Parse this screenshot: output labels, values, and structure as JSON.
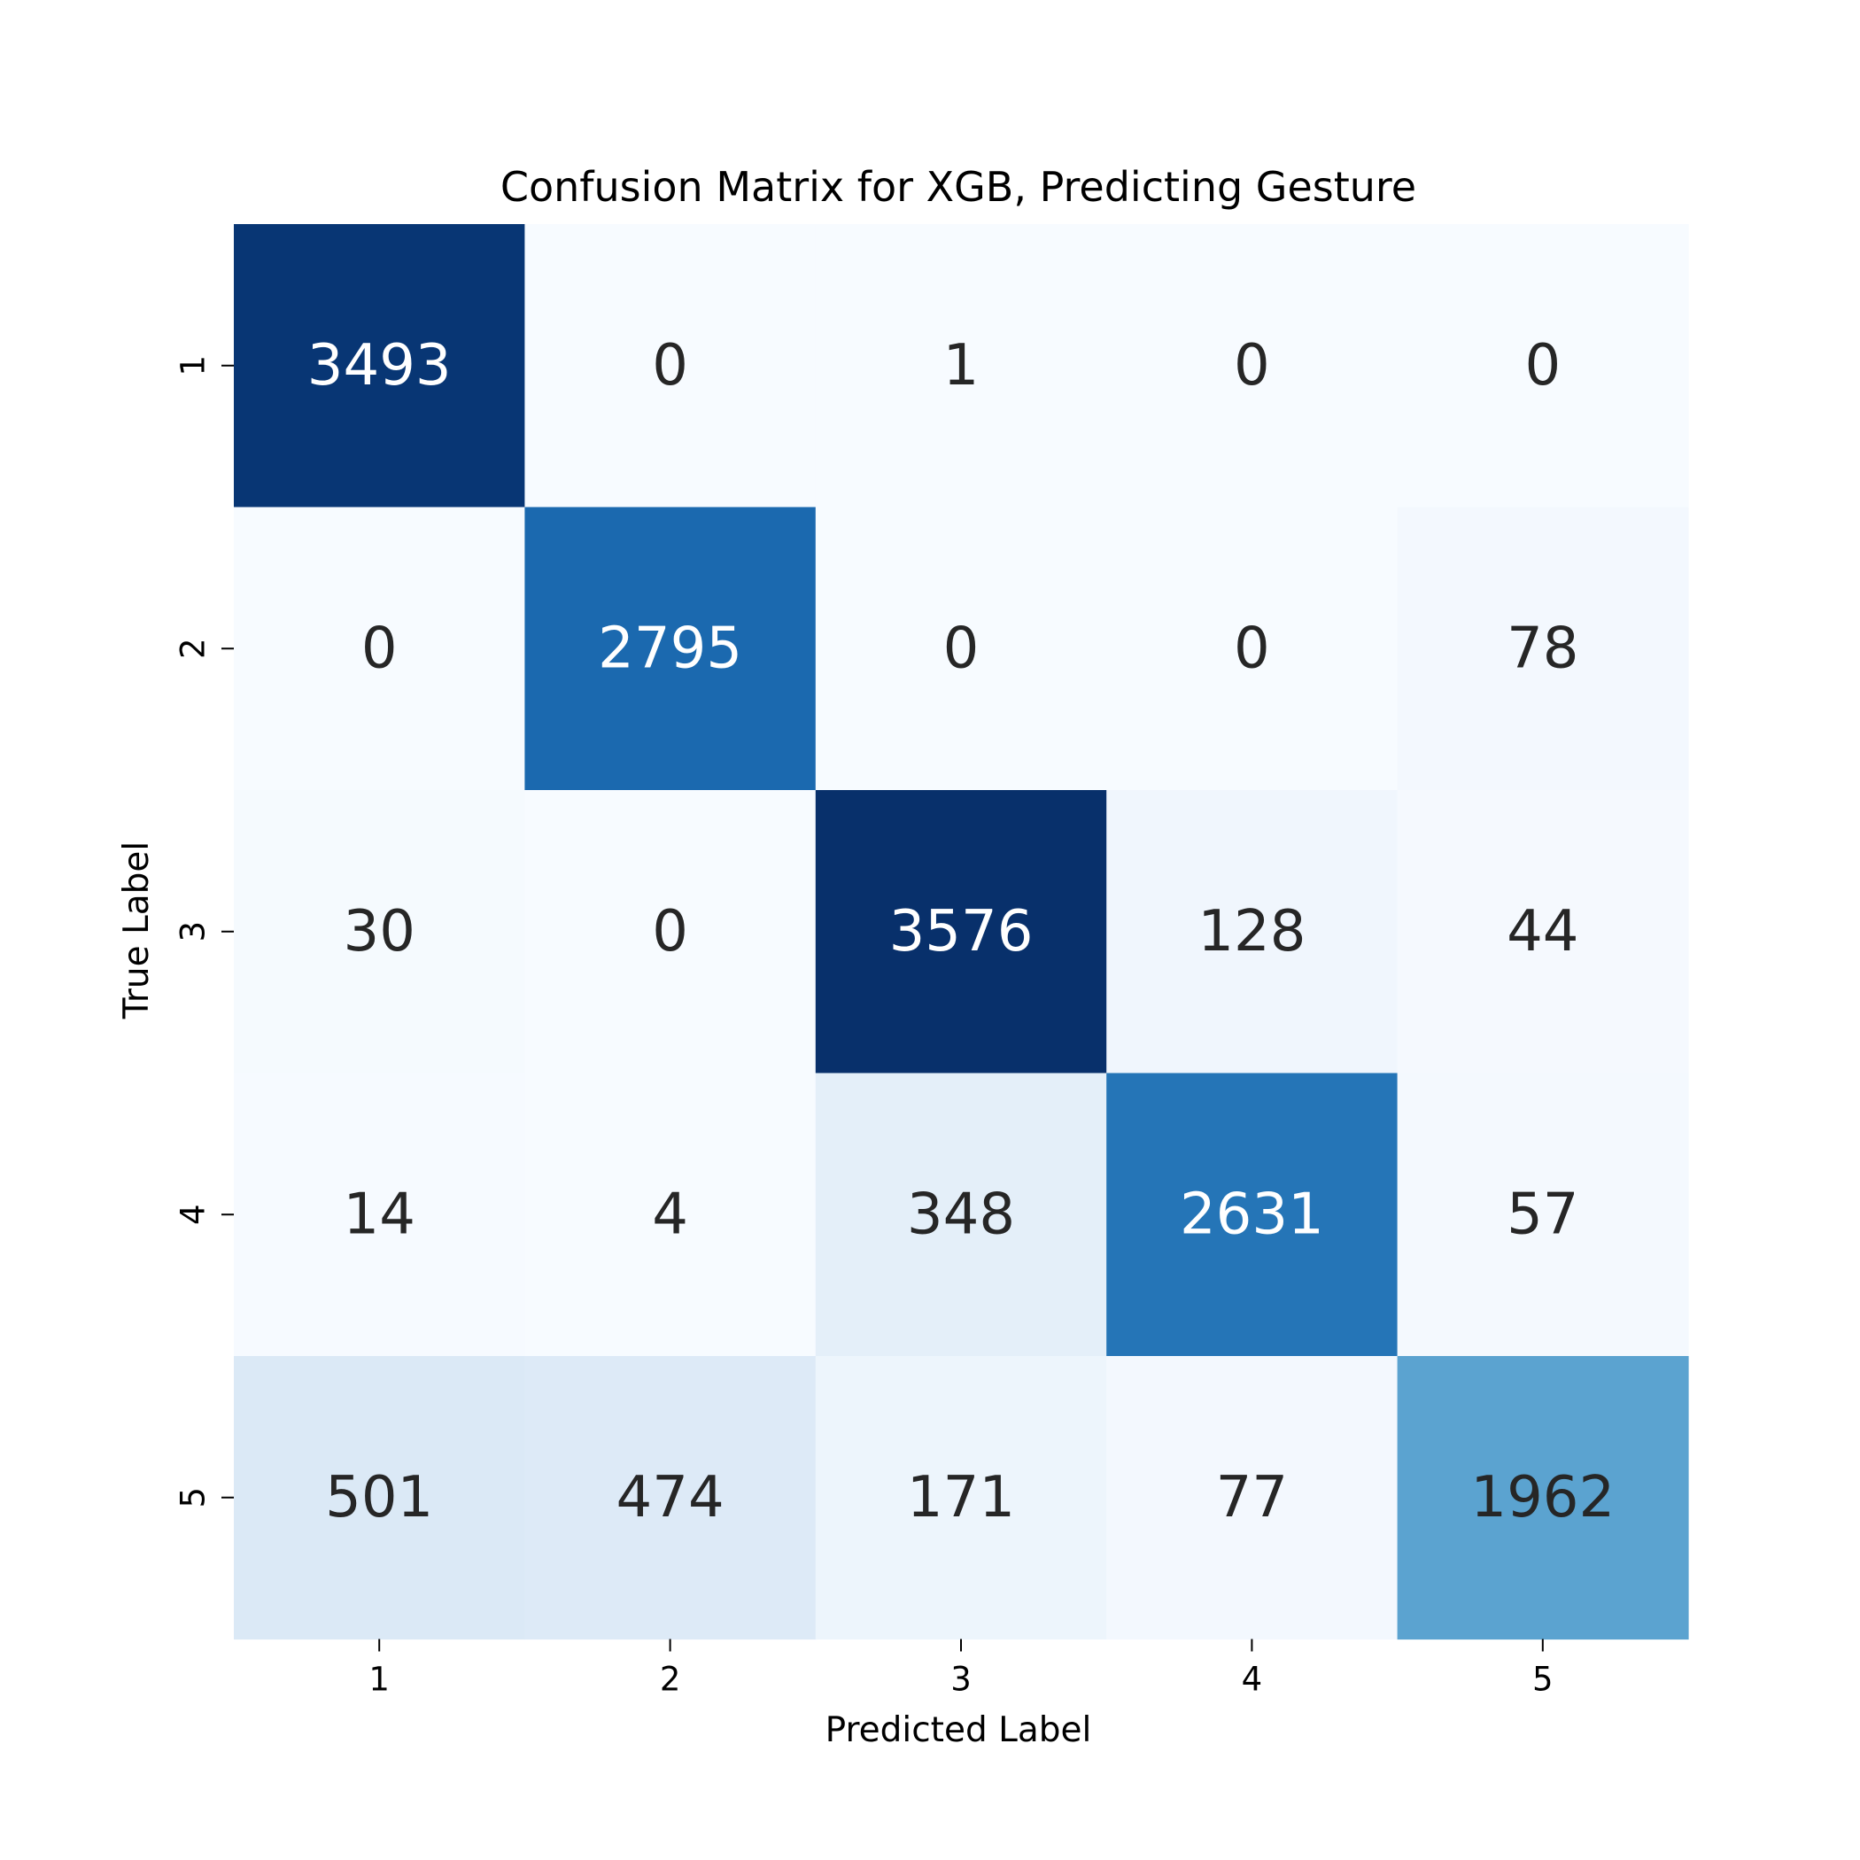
{
  "chart_data": {
    "type": "heatmap",
    "title": "Confusion Matrix for XGB, Predicting Gesture",
    "xlabel": "Predicted Label",
    "ylabel": "True Label",
    "x_categories": [
      "1",
      "2",
      "3",
      "4",
      "5"
    ],
    "y_categories": [
      "1",
      "2",
      "3",
      "4",
      "5"
    ],
    "values": [
      [
        3493,
        0,
        1,
        0,
        0
      ],
      [
        0,
        2795,
        0,
        0,
        78
      ],
      [
        30,
        0,
        3576,
        128,
        44
      ],
      [
        14,
        4,
        348,
        2631,
        57
      ],
      [
        501,
        474,
        171,
        77,
        1962
      ]
    ],
    "colormap": "Blues",
    "color_range": [
      0,
      3576
    ],
    "colorbar": false,
    "grid": false,
    "colors": {
      "low": "#f7fbff",
      "high": "#08306b",
      "text_dark": "#262626",
      "text_light": "#ffffff"
    }
  }
}
